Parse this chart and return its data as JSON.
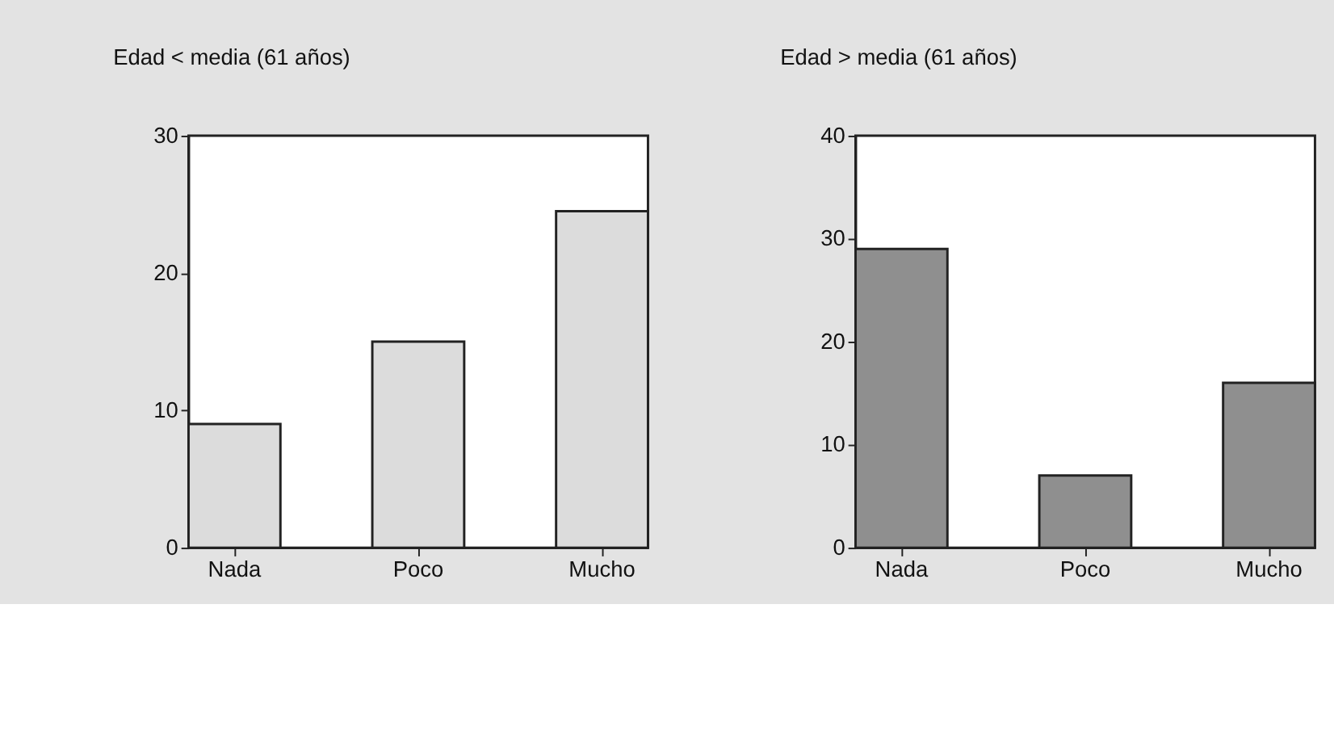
{
  "chart_data": [
    {
      "type": "bar",
      "title": "Edad < media (61 años)",
      "categories": [
        "Nada",
        "Poco",
        "Mucho"
      ],
      "values": [
        9,
        15,
        24.5
      ],
      "color": "#dcdcdc",
      "ylim": [
        0,
        30
      ],
      "yticks": [
        0,
        10,
        20,
        30
      ],
      "grid": false,
      "legend": false
    },
    {
      "type": "bar",
      "title": "Edad > media (61 años)",
      "categories": [
        "Nada",
        "Poco",
        "Mucho"
      ],
      "values": [
        29,
        7,
        16
      ],
      "color": "#8f8f8f",
      "ylim": [
        0,
        40
      ],
      "yticks": [
        0,
        10,
        20,
        30,
        40
      ],
      "grid": false,
      "legend": false
    }
  ]
}
